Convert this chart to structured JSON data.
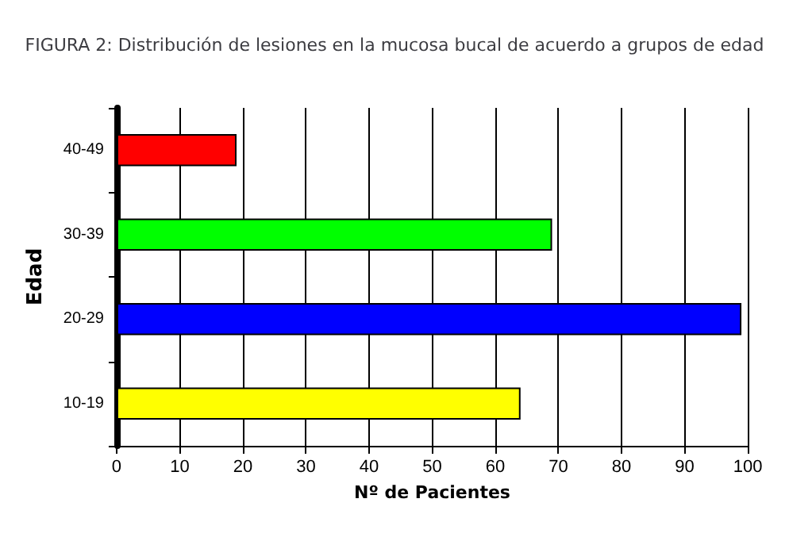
{
  "chart_data": {
    "type": "bar",
    "orientation": "horizontal",
    "title": "FIGURA 2: Distribución de lesiones en la mucosa bucal de acuerdo a grupos de edad",
    "xlabel": "Nº de Pacientes",
    "ylabel": "Edad",
    "categories": [
      "40-49",
      "30-39",
      "20-29",
      "10-19"
    ],
    "values": [
      19,
      69,
      99,
      64
    ],
    "colors": [
      "#ff0000",
      "#00ff00",
      "#0000ff",
      "#ffff00"
    ],
    "xlim": [
      0,
      100
    ],
    "xticks": [
      0,
      10,
      20,
      30,
      40,
      50,
      60,
      70,
      80,
      90,
      100
    ],
    "grid": "x"
  }
}
